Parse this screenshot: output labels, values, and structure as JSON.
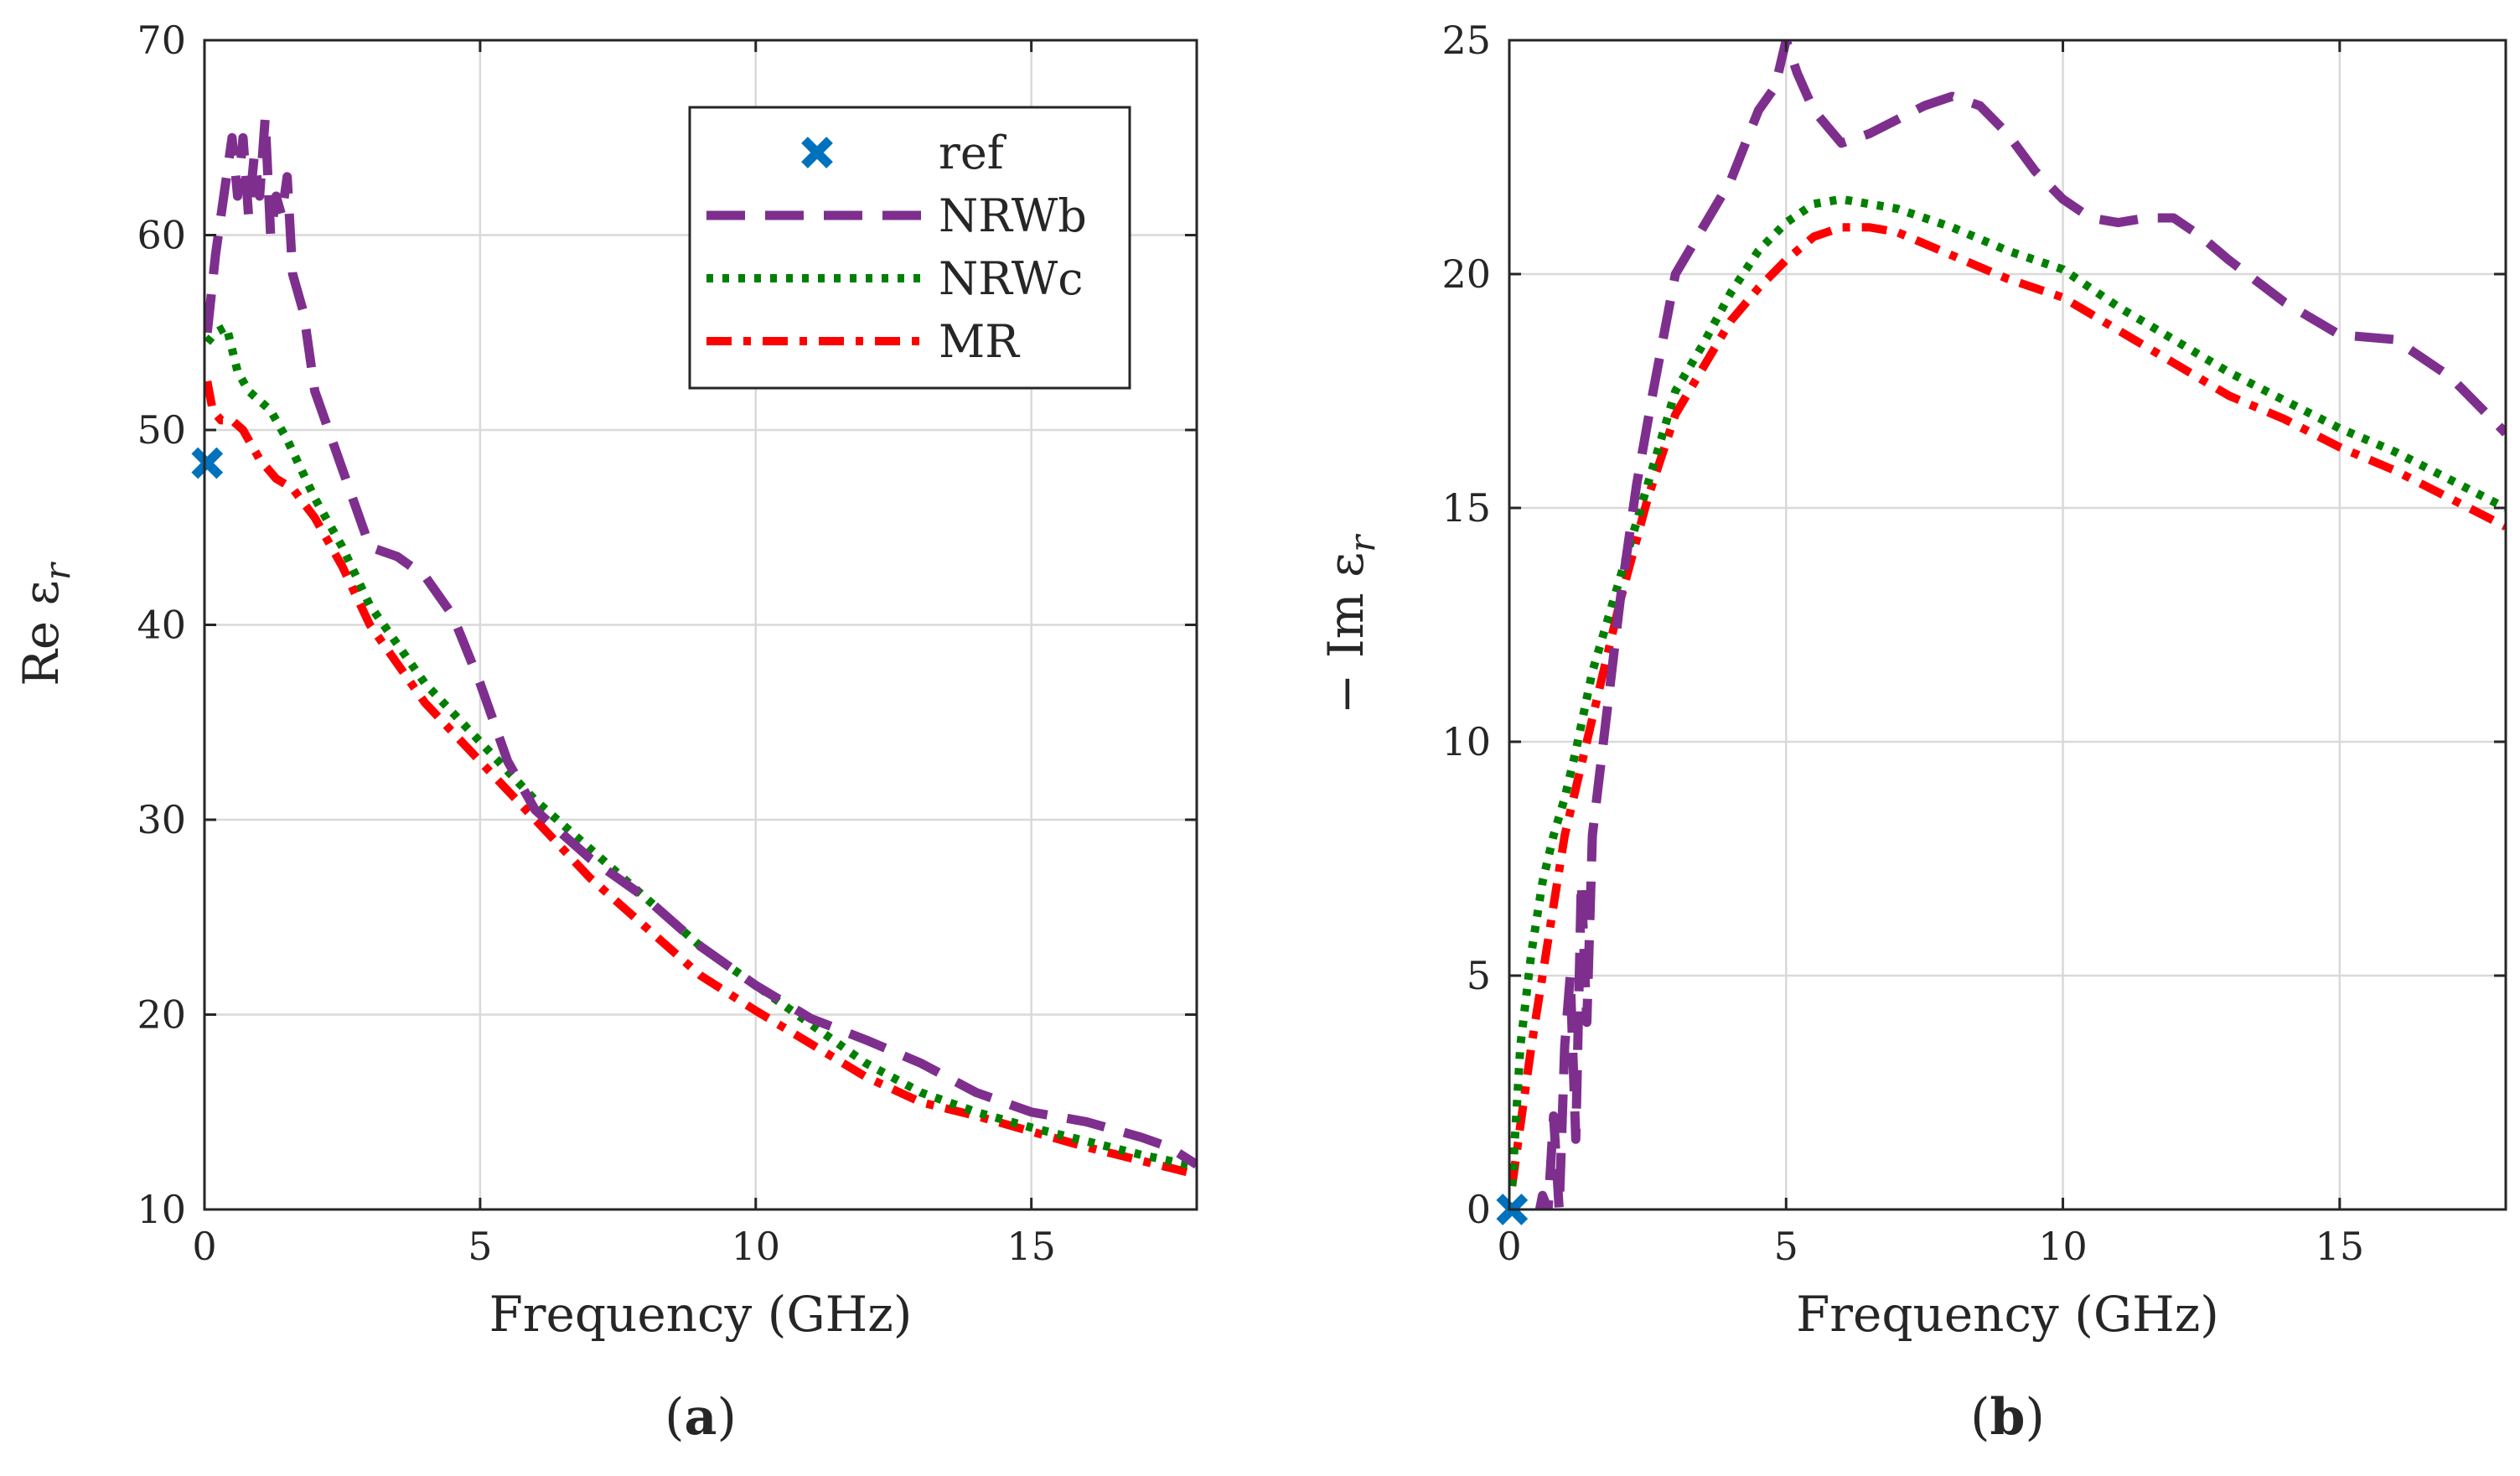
{
  "figure": {
    "panel_labels": [
      {
        "open": "(",
        "letter": "a",
        "close": ")"
      },
      {
        "open": "(",
        "letter": "b",
        "close": ")"
      }
    ]
  },
  "colors": {
    "ref": "#0072BD",
    "NRWb": "#7E2F8E",
    "NRWc": "#008000",
    "MR": "#FF0000",
    "axis": "#262626",
    "grid": "#d9d9d9"
  },
  "chart_data": [
    {
      "type": "line",
      "panel": "a",
      "title": "",
      "xlabel": "Frequency (GHz)",
      "ylabel_parts": {
        "prefix": "Re ",
        "symbol": "ε",
        "subscript": "r"
      },
      "xlim": [
        0,
        18
      ],
      "ylim": [
        10,
        70
      ],
      "xticks": [
        0,
        5,
        10,
        15
      ],
      "yticks": [
        10,
        20,
        30,
        40,
        50,
        60,
        70
      ],
      "grid": true,
      "legend": {
        "placement": "top-right",
        "entries": [
          "ref",
          "NRWb",
          "NRWc",
          "MR"
        ]
      },
      "series": [
        {
          "name": "ref",
          "style": "marker-x",
          "x": [
            0.05
          ],
          "y": [
            48.3
          ]
        },
        {
          "name": "NRWb",
          "style": "dashed",
          "x": [
            0.05,
            0.2,
            0.3,
            0.4,
            0.5,
            0.6,
            0.7,
            0.8,
            0.9,
            1.0,
            1.1,
            1.2,
            1.3,
            1.4,
            1.5,
            1.6,
            1.8,
            2.0,
            2.5,
            3.0,
            3.5,
            4.0,
            4.5,
            5.0,
            5.5,
            6.0,
            7.0,
            8.0,
            9.0,
            10.0,
            11.0,
            12.0,
            13.0,
            14.0,
            15.0,
            16.0,
            17.0,
            17.5,
            18.0
          ],
          "y": [
            55,
            59,
            61,
            63,
            65,
            62,
            65,
            61,
            64,
            62,
            66,
            60,
            62,
            61,
            63,
            58,
            56,
            52,
            48,
            44,
            43.5,
            42.5,
            40.5,
            37,
            33,
            30.5,
            28,
            26,
            23.5,
            21.5,
            19.8,
            18.7,
            17.5,
            16,
            15,
            14.5,
            13.7,
            13.2,
            12.3
          ]
        },
        {
          "name": "NRWc",
          "style": "dotted",
          "x": [
            0.05,
            0.2,
            0.4,
            0.6,
            0.8,
            1.0,
            1.2,
            1.5,
            2.0,
            2.5,
            3.0,
            4.0,
            5.0,
            6.0,
            7.0,
            8.0,
            9.0,
            10.0,
            11.0,
            12.0,
            13.0,
            14.0,
            15.0,
            16.0,
            17.0,
            18.0
          ],
          "y": [
            54.5,
            55,
            55.3,
            53,
            52,
            51.5,
            51,
            49.5,
            46.5,
            44,
            41,
            37,
            34,
            31,
            28.5,
            26,
            23.5,
            21.5,
            19.5,
            17.5,
            16,
            15,
            14.2,
            13.5,
            12.8,
            12.2
          ]
        },
        {
          "name": "MR",
          "style": "dashdot",
          "x": [
            0.05,
            0.15,
            0.3,
            0.5,
            0.7,
            1.0,
            1.3,
            1.6,
            2.0,
            2.5,
            3.0,
            4.0,
            5.0,
            6.0,
            7.0,
            8.0,
            9.0,
            10.0,
            11.0,
            12.0,
            13.0,
            14.0,
            15.0,
            16.0,
            17.0,
            18.0
          ],
          "y": [
            52.5,
            51,
            50.5,
            50.5,
            50,
            48.5,
            47.5,
            47,
            45.5,
            43,
            40,
            36,
            33,
            30,
            27,
            24.5,
            22,
            20.2,
            18.5,
            16.8,
            15.5,
            14.8,
            14,
            13.2,
            12.5,
            11.8
          ]
        }
      ]
    },
    {
      "type": "line",
      "panel": "b",
      "title": "",
      "xlabel": "Frequency (GHz)",
      "ylabel_parts": {
        "prefix": "− Im ",
        "symbol": "ε",
        "subscript": "r"
      },
      "xlim": [
        0,
        18
      ],
      "ylim": [
        0,
        25
      ],
      "xticks": [
        0,
        5,
        10,
        15
      ],
      "yticks": [
        0,
        5,
        10,
        15,
        20,
        25
      ],
      "grid": true,
      "series": [
        {
          "name": "ref",
          "style": "marker-x",
          "x": [
            0.05
          ],
          "y": [
            0.0
          ]
        },
        {
          "name": "NRWb",
          "style": "dashed",
          "x": [
            0.55,
            0.6,
            0.7,
            0.8,
            0.9,
            1.0,
            1.1,
            1.2,
            1.3,
            1.4,
            1.5,
            1.7,
            2.0,
            2.3,
            2.6,
            3.0,
            3.5,
            4.0,
            4.5,
            4.8,
            5.0,
            5.2,
            5.5,
            6.0,
            6.5,
            7.0,
            7.5,
            8.0,
            8.5,
            9.0,
            9.5,
            10.0,
            10.5,
            11.0,
            11.5,
            12.0,
            12.5,
            13.0,
            14.0,
            15.0,
            16.0,
            17.0,
            18.0
          ],
          "y": [
            0,
            0.3,
            0,
            2,
            0,
            3.5,
            5,
            1.5,
            7,
            4,
            8,
            10,
            13,
            15.5,
            17.5,
            20,
            21,
            22,
            23.5,
            24,
            25,
            24.3,
            23.5,
            22.8,
            23,
            23.3,
            23.6,
            23.8,
            23.6,
            23,
            22.2,
            21.6,
            21.2,
            21.1,
            21.2,
            21.2,
            20.8,
            20.3,
            19.4,
            18.7,
            18.6,
            17.8,
            16.6
          ]
        },
        {
          "name": "NRWc",
          "style": "dotted",
          "x": [
            0.05,
            0.2,
            0.4,
            0.6,
            0.8,
            1.0,
            1.2,
            1.5,
            2.0,
            2.5,
            3.0,
            3.5,
            4.0,
            4.5,
            5.0,
            5.5,
            6.0,
            6.5,
            7.0,
            8.0,
            9.0,
            10.0,
            11.0,
            12.0,
            13.0,
            14.0,
            15.0,
            16.0,
            17.0,
            18.0
          ],
          "y": [
            0.5,
            3.5,
            5.5,
            7,
            8,
            8.8,
            9.8,
            11.5,
            13.5,
            15.5,
            17.5,
            18.5,
            19.6,
            20.5,
            21.1,
            21.5,
            21.6,
            21.5,
            21.4,
            21,
            20.5,
            20.1,
            19.3,
            18.6,
            17.9,
            17.3,
            16.7,
            16.2,
            15.6,
            15
          ]
        },
        {
          "name": "MR",
          "style": "dashdot",
          "x": [
            0.05,
            0.2,
            0.4,
            0.6,
            0.8,
            1.0,
            1.2,
            1.5,
            2.0,
            2.5,
            3.0,
            3.5,
            4.0,
            4.5,
            5.0,
            5.5,
            6.0,
            6.5,
            7.0,
            8.0,
            9.0,
            10.0,
            11.0,
            12.0,
            13.0,
            14.0,
            15.0,
            16.0,
            17.0,
            18.0
          ],
          "y": [
            0.5,
            1.8,
            3.5,
            5,
            6.5,
            8,
            9,
            10.5,
            13,
            15.2,
            17,
            18,
            19,
            19.7,
            20.3,
            20.8,
            21,
            21,
            20.9,
            20.4,
            19.9,
            19.5,
            18.8,
            18.1,
            17.4,
            16.9,
            16.3,
            15.8,
            15.2,
            14.6
          ]
        }
      ]
    }
  ]
}
